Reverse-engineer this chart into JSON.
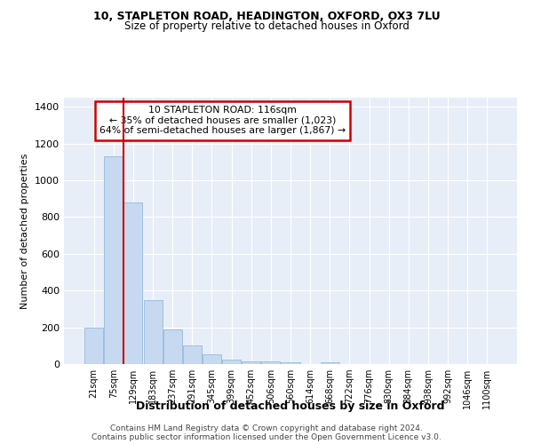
{
  "title1": "10, STAPLETON ROAD, HEADINGTON, OXFORD, OX3 7LU",
  "title2": "Size of property relative to detached houses in Oxford",
  "xlabel": "Distribution of detached houses by size in Oxford",
  "ylabel": "Number of detached properties",
  "bins": [
    "21sqm",
    "75sqm",
    "129sqm",
    "183sqm",
    "237sqm",
    "291sqm",
    "345sqm",
    "399sqm",
    "452sqm",
    "506sqm",
    "560sqm",
    "614sqm",
    "668sqm",
    "722sqm",
    "776sqm",
    "830sqm",
    "884sqm",
    "938sqm",
    "992sqm",
    "1046sqm",
    "1100sqm"
  ],
  "values": [
    200,
    1130,
    880,
    350,
    190,
    100,
    55,
    22,
    15,
    15,
    10,
    0,
    10,
    0,
    0,
    0,
    0,
    0,
    0,
    0,
    0
  ],
  "bar_color": "#c6d9f0",
  "bar_edge_color": "#9dbfdf",
  "vline_color": "#cc0000",
  "vline_bin_index": 1.5,
  "annotation_line1": "10 STAPLETON ROAD: 116sqm",
  "annotation_line2": "← 35% of detached houses are smaller (1,023)",
  "annotation_line3": "64% of semi-detached houses are larger (1,867) →",
  "annotation_box_color": "#cc0000",
  "annotation_box_fill": "#ffffff",
  "ylim": [
    0,
    1450
  ],
  "yticks": [
    0,
    200,
    400,
    600,
    800,
    1000,
    1200,
    1400
  ],
  "bg_color": "#e8eef8",
  "grid_color": "#ffffff",
  "footer1": "Contains HM Land Registry data © Crown copyright and database right 2024.",
  "footer2": "Contains public sector information licensed under the Open Government Licence v3.0."
}
